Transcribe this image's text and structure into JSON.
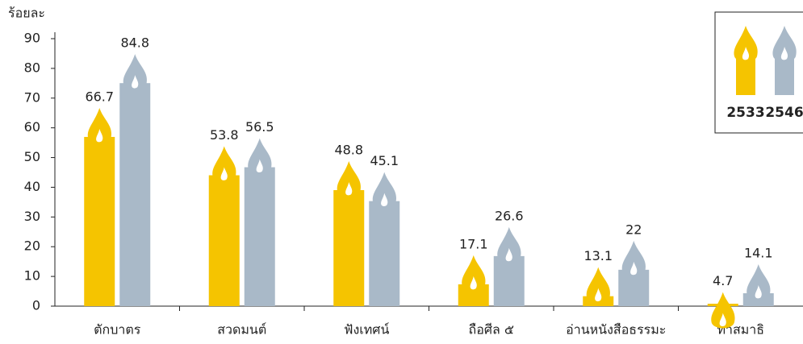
{
  "chart_data": {
    "type": "bar",
    "y_label": "ร้อยละ",
    "categories": [
      "ตักบาตร",
      "สวดมนต์",
      "ฟังเทศน์",
      "ถือศีล ๕",
      "อ่านหนังสือธรรมะ",
      "ทำสมาธิ"
    ],
    "series": [
      {
        "name": "2533",
        "color": "#f5c400",
        "values": [
          66.7,
          53.8,
          48.8,
          17.1,
          13.1,
          4.7
        ]
      },
      {
        "name": "2546",
        "color": "#a9b9c8",
        "values": [
          84.8,
          56.5,
          45.1,
          26.6,
          22,
          14.1
        ]
      }
    ],
    "ylim": [
      0,
      90
    ],
    "yticks": [
      0,
      10,
      20,
      30,
      40,
      50,
      60,
      70,
      80,
      90
    ]
  }
}
